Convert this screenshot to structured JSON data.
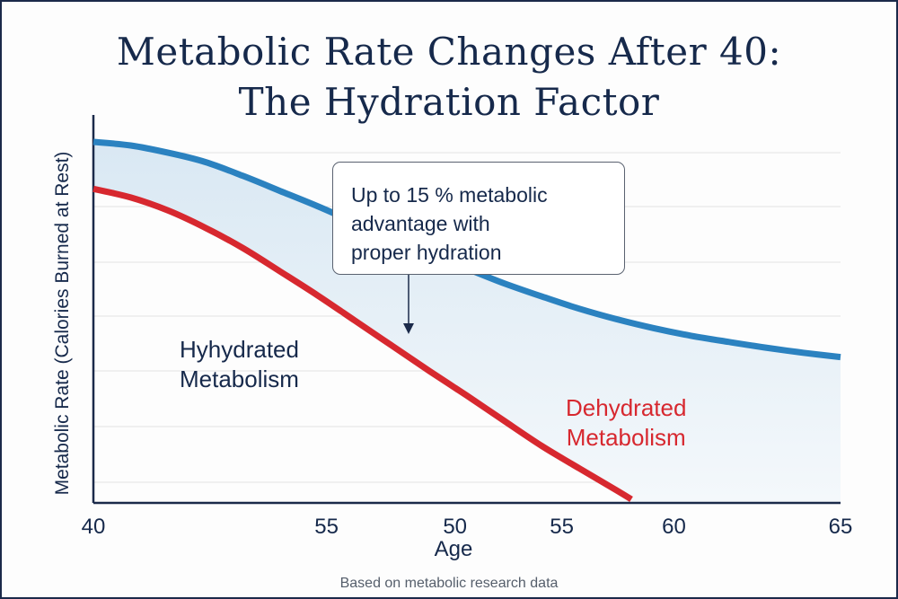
{
  "title": {
    "line1": "Metabolic Rate Changes After 40:",
    "line2": "The Hydration Factor"
  },
  "footnote": "Based on metabolic research data",
  "callout": {
    "text_lines": [
      "Up to 15 % metabolic",
      "advantage with",
      "proper hydration"
    ]
  },
  "series_labels": {
    "hydrated": [
      "Hyhydrated",
      "Metabolism"
    ],
    "dehydrated": [
      "Dehydrated",
      "Metabolism"
    ]
  },
  "colors": {
    "hydrated": "#2b82c0",
    "dehydrated": "#d7282f",
    "band": "#d9e8f3",
    "text": "#16294b",
    "grid": "#e3e3e3"
  },
  "chart_data": {
    "type": "line",
    "xlabel": "Age",
    "ylabel": "Metabolic Rate (Calories Burned at Rest)",
    "x_tick_labels": [
      "40",
      "55",
      "50",
      "55",
      "60",
      "65"
    ],
    "x_tick_positions": [
      0,
      0.312,
      0.484,
      0.627,
      0.777,
      1.0
    ],
    "ylim": [
      0,
      100
    ],
    "grid": true,
    "legend": "none",
    "fill_between_series": true,
    "series": [
      {
        "name": "Hyhydrated Metabolism",
        "color": "#2b82c0",
        "x": [
          0,
          0.05,
          0.1,
          0.15,
          0.2,
          0.25,
          0.3,
          0.35,
          0.4,
          0.45,
          0.5,
          0.55,
          0.6,
          0.65,
          0.7,
          0.75,
          0.8,
          0.85,
          0.9,
          0.95,
          1.0
        ],
        "values": [
          100,
          99.0,
          97.0,
          94.4,
          90.6,
          86.4,
          82.2,
          77.7,
          73.4,
          69.2,
          64.9,
          60.8,
          57.2,
          53.8,
          50.9,
          48.4,
          46.3,
          44.6,
          43.0,
          41.6,
          40.4
        ]
      },
      {
        "name": "Dehydrated Metabolism",
        "color": "#d7282f",
        "x": [
          0,
          0.05,
          0.1,
          0.15,
          0.2,
          0.25,
          0.3,
          0.35,
          0.4,
          0.45,
          0.5,
          0.55,
          0.6,
          0.65,
          0.7,
          0.72
        ],
        "values": [
          87,
          84.6,
          81.0,
          76.2,
          70.6,
          64.1,
          57.5,
          50.5,
          43.5,
          36.5,
          29.7,
          22.7,
          15.8,
          9.6,
          3.5,
          1.0
        ]
      }
    ]
  }
}
